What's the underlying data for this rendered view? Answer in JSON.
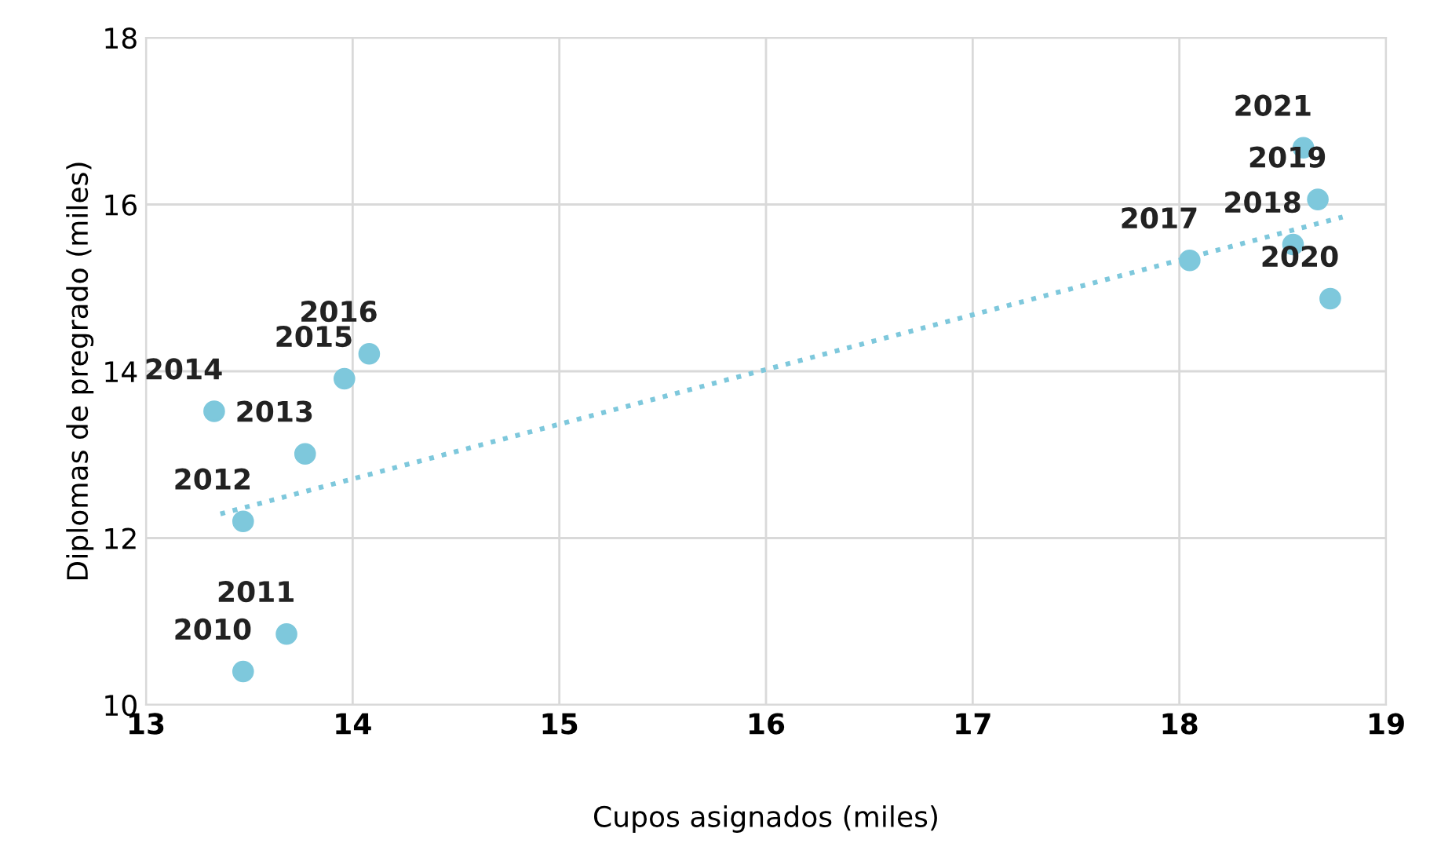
{
  "chart_data": {
    "type": "scatter",
    "xlabel": "Cupos asignados (miles)",
    "ylabel": "Diplomas de pregrado (miles)",
    "xlim": [
      13,
      19
    ],
    "ylim": [
      10,
      18
    ],
    "xticks": [
      13,
      14,
      15,
      16,
      17,
      18,
      19
    ],
    "yticks": [
      10,
      12,
      14,
      16,
      18
    ],
    "grid": true,
    "series": [
      {
        "marker": "circle",
        "color": "#7ec8dc",
        "x": [
          13.47,
          13.68,
          13.47,
          13.77,
          13.33,
          13.96,
          14.08,
          18.05,
          18.55,
          18.67,
          18.73,
          18.6
        ],
        "values": [
          10.4,
          10.85,
          12.2,
          13.01,
          13.52,
          13.91,
          14.21,
          15.33,
          15.52,
          16.06,
          14.87,
          16.68
        ]
      },
      {
        "type": "line",
        "color": "#7ec8dc",
        "line_style": "dotted",
        "x": [
          13.36,
          18.79
        ],
        "values": [
          12.29,
          15.85
        ]
      }
    ],
    "annotations": [
      {
        "text": "2010",
        "x": 13.47,
        "y": 10.4
      },
      {
        "text": "2011",
        "x": 13.68,
        "y": 10.85
      },
      {
        "text": "2012",
        "x": 13.47,
        "y": 12.2
      },
      {
        "text": "2013",
        "x": 13.77,
        "y": 13.01
      },
      {
        "text": "2014",
        "x": 13.33,
        "y": 13.52
      },
      {
        "text": "2015",
        "x": 13.96,
        "y": 13.91
      },
      {
        "text": "2016",
        "x": 14.08,
        "y": 14.21
      },
      {
        "text": "2017",
        "x": 18.05,
        "y": 15.33
      },
      {
        "text": "2018",
        "x": 18.55,
        "y": 15.52
      },
      {
        "text": "2019",
        "x": 18.67,
        "y": 16.06
      },
      {
        "text": "2020",
        "x": 18.73,
        "y": 14.87
      },
      {
        "text": "2021",
        "x": 18.6,
        "y": 16.68
      }
    ]
  }
}
